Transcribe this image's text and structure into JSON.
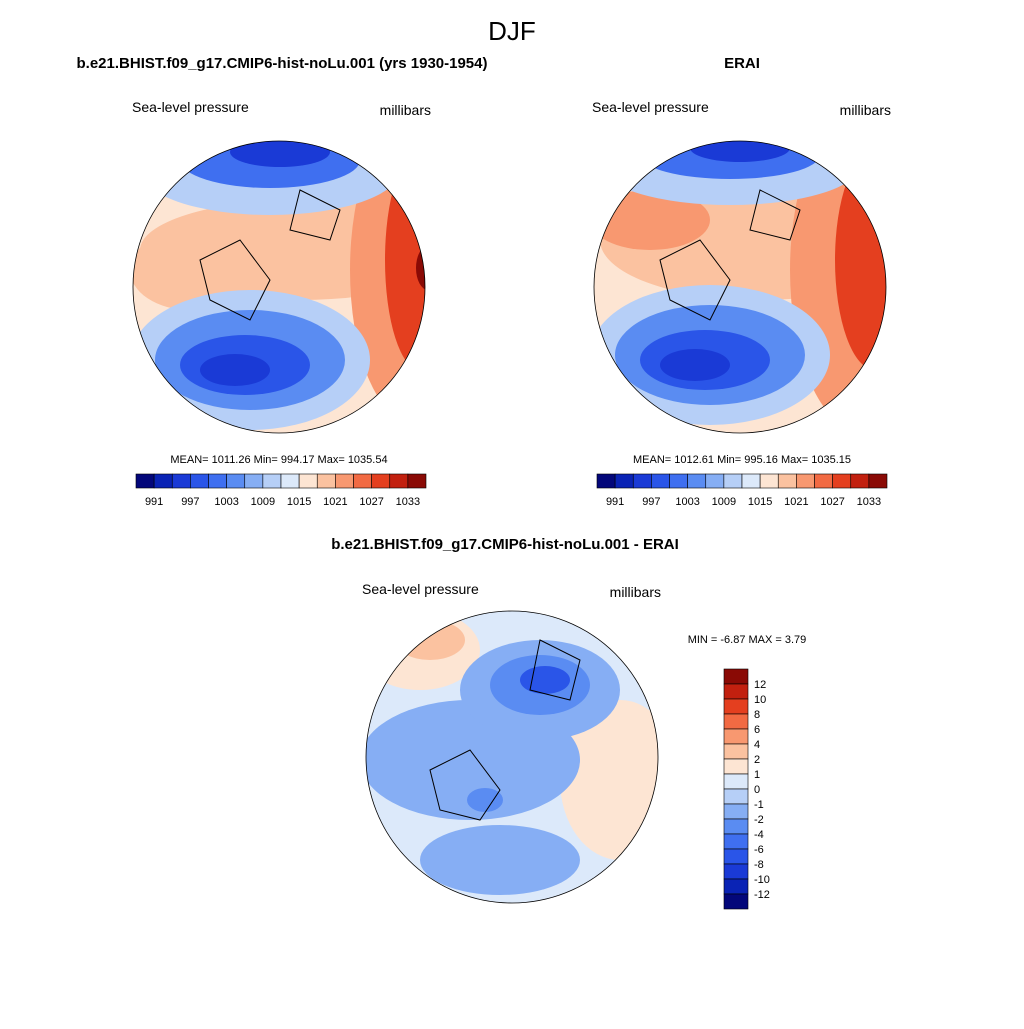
{
  "title": "DJF",
  "panels": [
    {
      "title": "b.e21.BHIST.f09_g17.CMIP6-hist-noLu.001 (yrs 1930-1954)",
      "left_label": "Sea-level pressure",
      "right_label": "millibars",
      "stats": "MEAN= 1011.26  Min= 994.17  Max= 1035.54",
      "colorbar": {
        "labels": [
          991,
          997,
          1003,
          1009,
          1015,
          1021,
          1027,
          1033
        ]
      }
    },
    {
      "title": "ERAI",
      "left_label": "Sea-level pressure",
      "right_label": "millibars",
      "stats": "MEAN= 1012.61  Min= 995.16  Max= 1035.15",
      "colorbar": {
        "labels": [
          991,
          997,
          1003,
          1009,
          1015,
          1021,
          1027,
          1033
        ]
      }
    },
    {
      "title": "b.e21.BHIST.f09_g17.CMIP6-hist-noLu.001 - ERAI",
      "left_label": "Sea-level pressure",
      "right_label": "millibars",
      "stats": "MIN =  -6.87 MAX =   3.79",
      "colorbar": {
        "labels": [
          12,
          10,
          8,
          6,
          4,
          2,
          1,
          0,
          -1,
          -2,
          -4,
          -6,
          -8,
          -10,
          -12
        ]
      }
    }
  ],
  "palette": [
    "#03077a",
    "#0a23b5",
    "#1a3ad6",
    "#2a55e8",
    "#3f6ff0",
    "#5a8cf2",
    "#86aef4",
    "#b6cff7",
    "#dce9fa",
    "#fde5d3",
    "#fbc2a0",
    "#f89870",
    "#f26a43",
    "#e43f1f",
    "#c2200f",
    "#8a0a05"
  ]
}
